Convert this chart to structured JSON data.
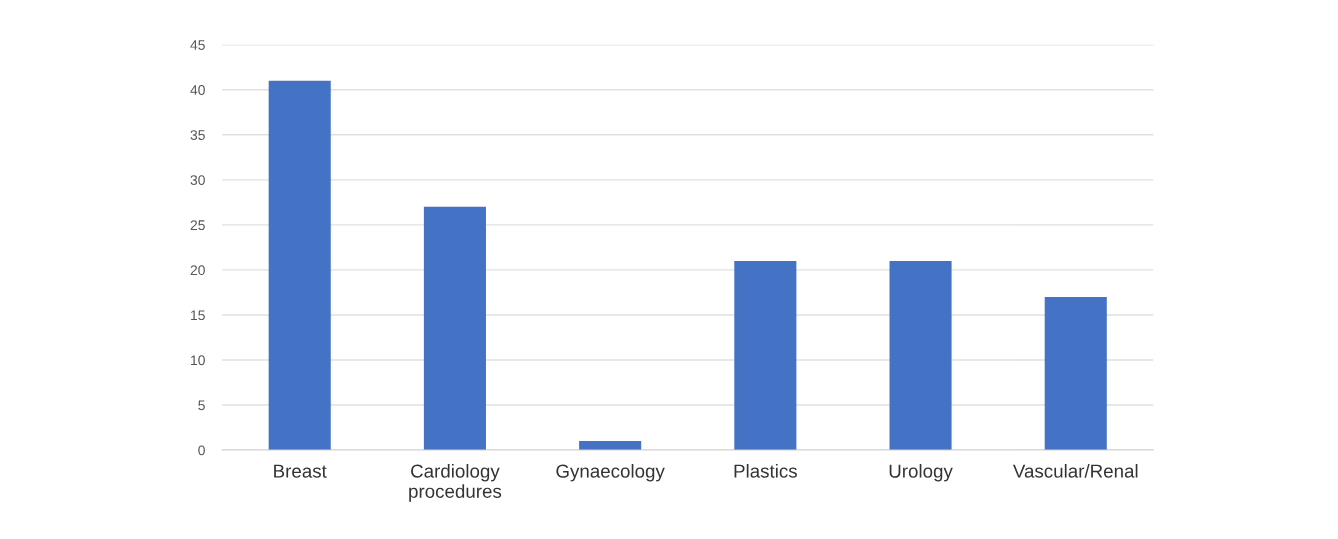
{
  "chart_data": {
    "type": "bar",
    "categories": [
      "Breast",
      "Cardiology procedures",
      "Gynaecology",
      "Plastics",
      "Urology",
      "Vascular/Renal"
    ],
    "values": [
      41,
      27,
      1,
      21,
      21,
      17
    ],
    "color": "#4472c4",
    "ylim": [
      0,
      45
    ],
    "yticks": [
      0,
      5,
      10,
      15,
      20,
      25,
      30,
      35,
      40,
      45
    ],
    "grid": "y"
  }
}
